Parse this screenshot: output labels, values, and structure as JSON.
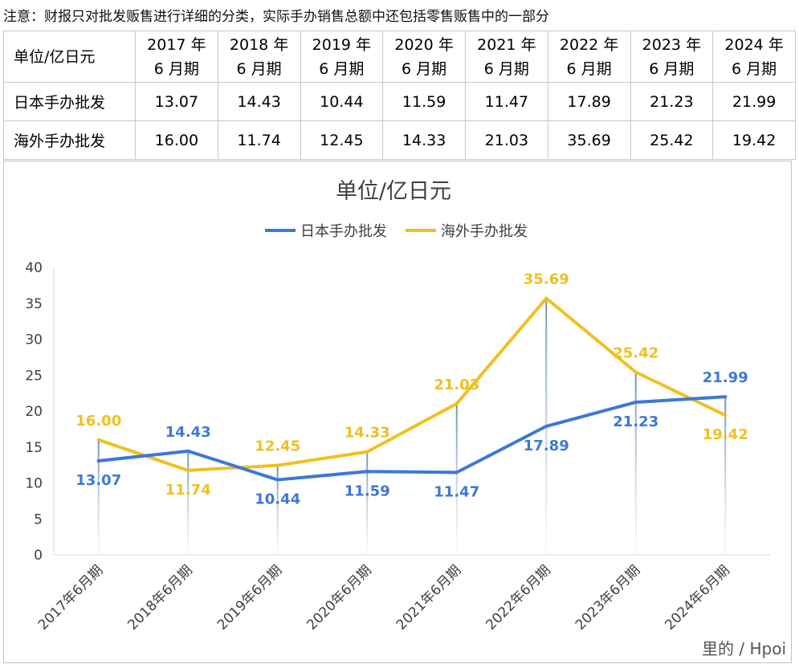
{
  "note": "注意：财报只对批发贩售进行详细的分类，实际手办销售总额中还包括零售贩售中的一部分",
  "table": {
    "corner": "单位/亿日元",
    "columns": [
      [
        "2017 年",
        "6 月期"
      ],
      [
        "2018 年",
        "6 月期"
      ],
      [
        "2019 年",
        "6 月期"
      ],
      [
        "2020 年",
        "6 月期"
      ],
      [
        "2021 年",
        "6 月期"
      ],
      [
        "2022 年",
        "6 月期"
      ],
      [
        "2023 年",
        "6 月期"
      ],
      [
        "2024 年",
        "6 月期"
      ]
    ],
    "rows": [
      {
        "label": "日本手办批发",
        "values": [
          "13.07",
          "14.43",
          "10.44",
          "11.59",
          "11.47",
          "17.89",
          "21.23",
          "21.99"
        ]
      },
      {
        "label": "海外手办批发",
        "values": [
          "16.00",
          "11.74",
          "12.45",
          "14.33",
          "21.03",
          "35.69",
          "25.42",
          "19.42"
        ]
      }
    ]
  },
  "chart_data": {
    "type": "line",
    "title": "单位/亿日元",
    "categories": [
      "2017年6月期",
      "2018年6月期",
      "2019年6月期",
      "2020年6月期",
      "2021年6月期",
      "2022年6月期",
      "2023年6月期",
      "2024年6月期"
    ],
    "series": [
      {
        "name": "日本手办批发",
        "color": "#3c78d8",
        "values": [
          13.07,
          14.43,
          10.44,
          11.59,
          11.47,
          17.89,
          21.23,
          21.99
        ],
        "labels": [
          "13.07",
          "14.43",
          "10.44",
          "11.59",
          "11.47",
          "17.89",
          "21.23",
          "21.99"
        ]
      },
      {
        "name": "海外手办批发",
        "color": "#f0c020",
        "values": [
          16.0,
          11.74,
          12.45,
          14.33,
          21.03,
          35.69,
          25.42,
          19.42
        ],
        "labels": [
          "16.00",
          "11.74",
          "12.45",
          "14.33",
          "21.03",
          "35.69",
          "25.42",
          "19.42"
        ]
      }
    ],
    "ylim": [
      0,
      40
    ],
    "yticks": [
      0,
      5,
      10,
      15,
      20,
      25,
      30,
      35,
      40
    ],
    "legend_position": "top-center",
    "grid": false,
    "xlabel": "",
    "ylabel": ""
  },
  "watermark": "里的 / Hpoi"
}
